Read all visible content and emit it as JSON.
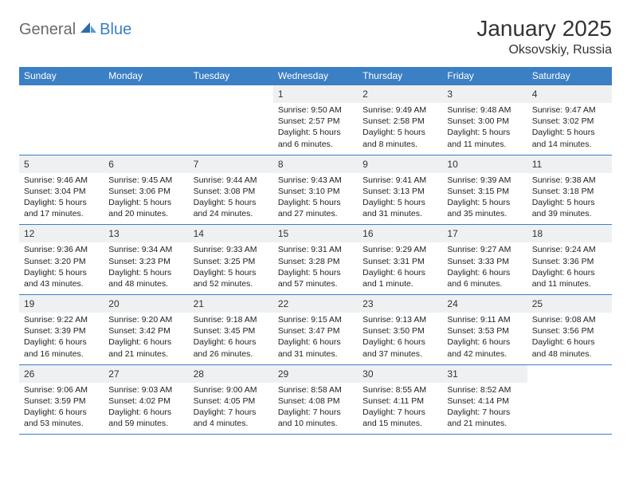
{
  "logo": {
    "text1": "General",
    "text2": "Blue"
  },
  "title": "January 2025",
  "location": "Oksovskiy, Russia",
  "colors": {
    "headerBar": "#3b7fc4",
    "dayNumBg": "#eef0f2",
    "weekBorder": "#3b7fc4",
    "logoGray": "#6a6a6a",
    "logoBlue": "#3b7fc4"
  },
  "dayNames": [
    "Sunday",
    "Monday",
    "Tuesday",
    "Wednesday",
    "Thursday",
    "Friday",
    "Saturday"
  ],
  "weeks": [
    [
      {
        "empty": true
      },
      {
        "empty": true
      },
      {
        "empty": true
      },
      {
        "num": "1",
        "sunrise": "Sunrise: 9:50 AM",
        "sunset": "Sunset: 2:57 PM",
        "dl1": "Daylight: 5 hours",
        "dl2": "and 6 minutes."
      },
      {
        "num": "2",
        "sunrise": "Sunrise: 9:49 AM",
        "sunset": "Sunset: 2:58 PM",
        "dl1": "Daylight: 5 hours",
        "dl2": "and 8 minutes."
      },
      {
        "num": "3",
        "sunrise": "Sunrise: 9:48 AM",
        "sunset": "Sunset: 3:00 PM",
        "dl1": "Daylight: 5 hours",
        "dl2": "and 11 minutes."
      },
      {
        "num": "4",
        "sunrise": "Sunrise: 9:47 AM",
        "sunset": "Sunset: 3:02 PM",
        "dl1": "Daylight: 5 hours",
        "dl2": "and 14 minutes."
      }
    ],
    [
      {
        "num": "5",
        "sunrise": "Sunrise: 9:46 AM",
        "sunset": "Sunset: 3:04 PM",
        "dl1": "Daylight: 5 hours",
        "dl2": "and 17 minutes."
      },
      {
        "num": "6",
        "sunrise": "Sunrise: 9:45 AM",
        "sunset": "Sunset: 3:06 PM",
        "dl1": "Daylight: 5 hours",
        "dl2": "and 20 minutes."
      },
      {
        "num": "7",
        "sunrise": "Sunrise: 9:44 AM",
        "sunset": "Sunset: 3:08 PM",
        "dl1": "Daylight: 5 hours",
        "dl2": "and 24 minutes."
      },
      {
        "num": "8",
        "sunrise": "Sunrise: 9:43 AM",
        "sunset": "Sunset: 3:10 PM",
        "dl1": "Daylight: 5 hours",
        "dl2": "and 27 minutes."
      },
      {
        "num": "9",
        "sunrise": "Sunrise: 9:41 AM",
        "sunset": "Sunset: 3:13 PM",
        "dl1": "Daylight: 5 hours",
        "dl2": "and 31 minutes."
      },
      {
        "num": "10",
        "sunrise": "Sunrise: 9:39 AM",
        "sunset": "Sunset: 3:15 PM",
        "dl1": "Daylight: 5 hours",
        "dl2": "and 35 minutes."
      },
      {
        "num": "11",
        "sunrise": "Sunrise: 9:38 AM",
        "sunset": "Sunset: 3:18 PM",
        "dl1": "Daylight: 5 hours",
        "dl2": "and 39 minutes."
      }
    ],
    [
      {
        "num": "12",
        "sunrise": "Sunrise: 9:36 AM",
        "sunset": "Sunset: 3:20 PM",
        "dl1": "Daylight: 5 hours",
        "dl2": "and 43 minutes."
      },
      {
        "num": "13",
        "sunrise": "Sunrise: 9:34 AM",
        "sunset": "Sunset: 3:23 PM",
        "dl1": "Daylight: 5 hours",
        "dl2": "and 48 minutes."
      },
      {
        "num": "14",
        "sunrise": "Sunrise: 9:33 AM",
        "sunset": "Sunset: 3:25 PM",
        "dl1": "Daylight: 5 hours",
        "dl2": "and 52 minutes."
      },
      {
        "num": "15",
        "sunrise": "Sunrise: 9:31 AM",
        "sunset": "Sunset: 3:28 PM",
        "dl1": "Daylight: 5 hours",
        "dl2": "and 57 minutes."
      },
      {
        "num": "16",
        "sunrise": "Sunrise: 9:29 AM",
        "sunset": "Sunset: 3:31 PM",
        "dl1": "Daylight: 6 hours",
        "dl2": "and 1 minute."
      },
      {
        "num": "17",
        "sunrise": "Sunrise: 9:27 AM",
        "sunset": "Sunset: 3:33 PM",
        "dl1": "Daylight: 6 hours",
        "dl2": "and 6 minutes."
      },
      {
        "num": "18",
        "sunrise": "Sunrise: 9:24 AM",
        "sunset": "Sunset: 3:36 PM",
        "dl1": "Daylight: 6 hours",
        "dl2": "and 11 minutes."
      }
    ],
    [
      {
        "num": "19",
        "sunrise": "Sunrise: 9:22 AM",
        "sunset": "Sunset: 3:39 PM",
        "dl1": "Daylight: 6 hours",
        "dl2": "and 16 minutes."
      },
      {
        "num": "20",
        "sunrise": "Sunrise: 9:20 AM",
        "sunset": "Sunset: 3:42 PM",
        "dl1": "Daylight: 6 hours",
        "dl2": "and 21 minutes."
      },
      {
        "num": "21",
        "sunrise": "Sunrise: 9:18 AM",
        "sunset": "Sunset: 3:45 PM",
        "dl1": "Daylight: 6 hours",
        "dl2": "and 26 minutes."
      },
      {
        "num": "22",
        "sunrise": "Sunrise: 9:15 AM",
        "sunset": "Sunset: 3:47 PM",
        "dl1": "Daylight: 6 hours",
        "dl2": "and 31 minutes."
      },
      {
        "num": "23",
        "sunrise": "Sunrise: 9:13 AM",
        "sunset": "Sunset: 3:50 PM",
        "dl1": "Daylight: 6 hours",
        "dl2": "and 37 minutes."
      },
      {
        "num": "24",
        "sunrise": "Sunrise: 9:11 AM",
        "sunset": "Sunset: 3:53 PM",
        "dl1": "Daylight: 6 hours",
        "dl2": "and 42 minutes."
      },
      {
        "num": "25",
        "sunrise": "Sunrise: 9:08 AM",
        "sunset": "Sunset: 3:56 PM",
        "dl1": "Daylight: 6 hours",
        "dl2": "and 48 minutes."
      }
    ],
    [
      {
        "num": "26",
        "sunrise": "Sunrise: 9:06 AM",
        "sunset": "Sunset: 3:59 PM",
        "dl1": "Daylight: 6 hours",
        "dl2": "and 53 minutes."
      },
      {
        "num": "27",
        "sunrise": "Sunrise: 9:03 AM",
        "sunset": "Sunset: 4:02 PM",
        "dl1": "Daylight: 6 hours",
        "dl2": "and 59 minutes."
      },
      {
        "num": "28",
        "sunrise": "Sunrise: 9:00 AM",
        "sunset": "Sunset: 4:05 PM",
        "dl1": "Daylight: 7 hours",
        "dl2": "and 4 minutes."
      },
      {
        "num": "29",
        "sunrise": "Sunrise: 8:58 AM",
        "sunset": "Sunset: 4:08 PM",
        "dl1": "Daylight: 7 hours",
        "dl2": "and 10 minutes."
      },
      {
        "num": "30",
        "sunrise": "Sunrise: 8:55 AM",
        "sunset": "Sunset: 4:11 PM",
        "dl1": "Daylight: 7 hours",
        "dl2": "and 15 minutes."
      },
      {
        "num": "31",
        "sunrise": "Sunrise: 8:52 AM",
        "sunset": "Sunset: 4:14 PM",
        "dl1": "Daylight: 7 hours",
        "dl2": "and 21 minutes."
      },
      {
        "empty": true
      }
    ]
  ]
}
